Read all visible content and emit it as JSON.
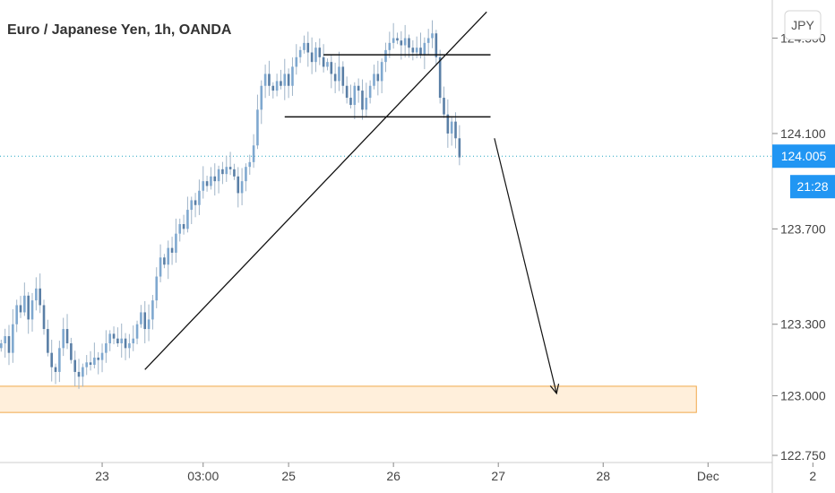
{
  "chart_data": {
    "type": "candlestick",
    "title": "Euro / Japanese Yen, 1h, OANDA",
    "currency": "JPY",
    "xlabel": "",
    "ylabel": "",
    "ylim": [
      122.72,
      124.66
    ],
    "y_ticks": [
      {
        "value": 124.5,
        "label": "124.500"
      },
      {
        "value": 124.1,
        "label": "124.100"
      },
      {
        "value": 123.7,
        "label": "123.700"
      },
      {
        "value": 123.3,
        "label": "123.300"
      },
      {
        "value": 123.0,
        "label": "123.000"
      },
      {
        "value": 122.75,
        "label": "122.750"
      }
    ],
    "x_ticks": [
      {
        "index": 27,
        "label": "23"
      },
      {
        "index": 53,
        "label": "03:00"
      },
      {
        "index": 75,
        "label": "25"
      },
      {
        "index": 102,
        "label": "26"
      },
      {
        "index": 129,
        "label": "27"
      },
      {
        "index": 156,
        "label": "28"
      },
      {
        "index": 183,
        "label": "Dec"
      },
      {
        "index": 210,
        "label": "2"
      }
    ],
    "x_max_index": 215,
    "closes": [
      123.22,
      123.25,
      123.18,
      123.3,
      123.38,
      123.35,
      123.42,
      123.32,
      123.4,
      123.45,
      123.38,
      123.28,
      123.18,
      123.12,
      123.1,
      123.2,
      123.28,
      123.22,
      123.15,
      123.1,
      123.08,
      123.12,
      123.14,
      123.13,
      123.16,
      123.15,
      123.18,
      123.22,
      123.26,
      123.24,
      123.22,
      123.24,
      123.2,
      123.22,
      123.24,
      123.3,
      123.35,
      123.28,
      123.32,
      123.4,
      123.5,
      123.58,
      123.55,
      123.62,
      123.6,
      123.68,
      123.72,
      123.7,
      123.78,
      123.82,
      123.8,
      123.86,
      123.9,
      123.88,
      123.92,
      123.9,
      123.95,
      123.93,
      123.96,
      123.95,
      123.92,
      123.85,
      123.9,
      123.96,
      123.98,
      124.05,
      124.2,
      124.3,
      124.35,
      124.3,
      124.28,
      124.32,
      124.3,
      124.35,
      124.3,
      124.38,
      124.42,
      124.45,
      124.48,
      124.44,
      124.4,
      124.46,
      124.42,
      124.38,
      124.4,
      124.35,
      124.32,
      124.38,
      124.3,
      124.25,
      124.22,
      124.3,
      124.28,
      124.2,
      124.25,
      124.3,
      124.35,
      124.32,
      124.4,
      124.45,
      124.48,
      124.5,
      124.49,
      124.47,
      124.5,
      124.46,
      124.44,
      124.46,
      124.43,
      124.48,
      124.5,
      124.52,
      124.42,
      124.25,
      124.18,
      124.1,
      124.15,
      124.08,
      124.0
    ],
    "support_zone": {
      "from": 122.93,
      "to": 123.04,
      "start_index": 0,
      "end_index": 180
    },
    "last_price": {
      "value": 124.005,
      "label": "124.005",
      "countdown": "21:28"
    },
    "drawings": {
      "trendline": {
        "start": {
          "index": 38,
          "value": 123.11
        },
        "end": {
          "index": 126,
          "value": 124.61
        }
      },
      "resistance_line": {
        "value": 124.43,
        "start_index": 84,
        "end_index": 127
      },
      "neckline": {
        "value": 124.17,
        "start_index": 74,
        "end_index": 127
      },
      "projection_arrow": {
        "start": {
          "index": 128,
          "value": 124.08
        },
        "end": {
          "index": 144,
          "value": 123.01
        }
      }
    }
  }
}
